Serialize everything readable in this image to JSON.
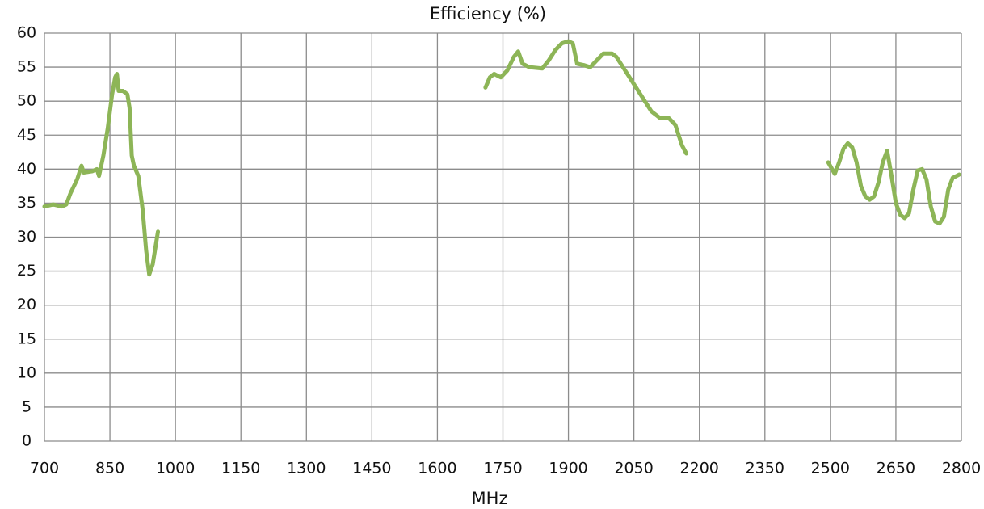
{
  "chart_data": {
    "type": "line",
    "title": "Efficiency (%)",
    "x_label": "MHz",
    "x": [
      700,
      720,
      740,
      750,
      760,
      775,
      785,
      790,
      810,
      820,
      825,
      835,
      845,
      855,
      862,
      866,
      870,
      880,
      890,
      895,
      900,
      905,
      915,
      925,
      933,
      940,
      948,
      960,
      1300,
      1710,
      1720,
      1730,
      1745,
      1760,
      1775,
      1785,
      1795,
      1810,
      1840,
      1855,
      1870,
      1885,
      1900,
      1910,
      1920,
      1935,
      1950,
      1965,
      1980,
      2000,
      2010,
      2030,
      2050,
      2070,
      2090,
      2110,
      2130,
      2145,
      2160,
      2170,
      2300,
      2495,
      2510,
      2520,
      2530,
      2540,
      2550,
      2560,
      2570,
      2580,
      2590,
      2600,
      2610,
      2620,
      2630,
      2640,
      2650,
      2660,
      2670,
      2680,
      2690,
      2700,
      2710,
      2720,
      2730,
      2740,
      2750,
      2760,
      2770,
      2780,
      2795
    ],
    "series": [
      {
        "name": "Efficiency",
        "color": "#8db557",
        "values": [
          34.5,
          34.8,
          34.5,
          34.8,
          36.5,
          38.5,
          40.5,
          39.5,
          39.7,
          40,
          39,
          42,
          46,
          51,
          53.5,
          54,
          51.5,
          51.5,
          51,
          49,
          42,
          40.5,
          39,
          34,
          28,
          24.5,
          26,
          30.8,
          null,
          52,
          53.5,
          54,
          53.5,
          54.5,
          56.5,
          57.3,
          55.5,
          55,
          54.8,
          56,
          57.5,
          58.5,
          58.8,
          58.5,
          55.5,
          55.3,
          55,
          56,
          57,
          57,
          56.5,
          54.5,
          52.5,
          50.5,
          48.5,
          47.5,
          47.5,
          46.5,
          43.5,
          42.3,
          null,
          41,
          39.3,
          41,
          43,
          43.8,
          43.2,
          41,
          37.5,
          36,
          35.5,
          36,
          38,
          41,
          42.7,
          39,
          35,
          33.3,
          32.8,
          33.5,
          37,
          39.8,
          40,
          38.5,
          34.5,
          32.3,
          32,
          33,
          37,
          38.7,
          39.2
        ]
      }
    ],
    "xlim": [
      700,
      2800
    ],
    "xticks": [
      700,
      850,
      1000,
      1150,
      1300,
      1450,
      1600,
      1750,
      1900,
      2050,
      2200,
      2350,
      2500,
      2650,
      2800
    ],
    "ylim": [
      0,
      60
    ],
    "yticks": [
      0,
      5,
      10,
      15,
      20,
      25,
      30,
      35,
      40,
      45,
      50,
      55,
      60
    ],
    "grid": true
  }
}
